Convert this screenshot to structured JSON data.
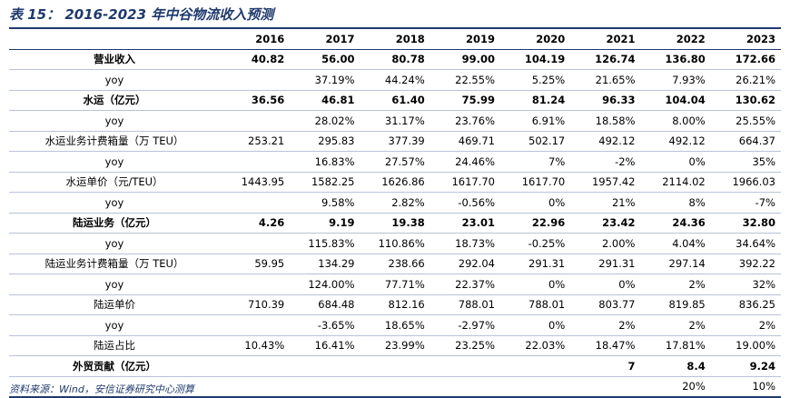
{
  "title": "表 15：  2016-2023 年中谷物流收入预测",
  "header": [
    "",
    "2016",
    "2017",
    "2018",
    "2019",
    "2020",
    "2021",
    "2022",
    "2023"
  ],
  "rows": [
    {
      "label": "营业收入",
      "bold": true,
      "values": [
        "40.82",
        "56.00",
        "80.78",
        "99.00",
        "104.19",
        "126.74",
        "136.80",
        "172.66"
      ]
    },
    {
      "label": "yoy",
      "bold": false,
      "values": [
        "",
        "37.19%",
        "44.24%",
        "22.55%",
        "5.25%",
        "21.65%",
        "7.93%",
        "26.21%"
      ]
    },
    {
      "label": "水运（亿元）",
      "bold": true,
      "values": [
        "36.56",
        "46.81",
        "61.40",
        "75.99",
        "81.24",
        "96.33",
        "104.04",
        "130.62"
      ]
    },
    {
      "label": "yoy",
      "bold": false,
      "values": [
        "",
        "28.02%",
        "31.17%",
        "23.76%",
        "6.91%",
        "18.58%",
        "8.00%",
        "25.55%"
      ]
    },
    {
      "label": "水运业务计费箱量（万 TEU）",
      "bold": false,
      "values": [
        "253.21",
        "295.83",
        "377.39",
        "469.71",
        "502.17",
        "492.12",
        "492.12",
        "664.37"
      ]
    },
    {
      "label": "yoy",
      "bold": false,
      "values": [
        "",
        "16.83%",
        "27.57%",
        "24.46%",
        "7%",
        "-2%",
        "0%",
        "35%"
      ]
    },
    {
      "label": "水运单价（元/TEU）",
      "bold": false,
      "values": [
        "1443.95",
        "1582.25",
        "1626.86",
        "1617.70",
        "1617.70",
        "1957.42",
        "2114.02",
        "1966.03"
      ]
    },
    {
      "label": "yoy",
      "bold": false,
      "values": [
        "",
        "9.58%",
        "2.82%",
        "-0.56%",
        "0%",
        "21%",
        "8%",
        "-7%"
      ]
    },
    {
      "label": "陆运业务（亿元）",
      "bold": true,
      "values": [
        "4.26",
        "9.19",
        "19.38",
        "23.01",
        "22.96",
        "23.42",
        "24.36",
        "32.80"
      ]
    },
    {
      "label": "yoy",
      "bold": false,
      "values": [
        "",
        "115.83%",
        "110.86%",
        "18.73%",
        "-0.25%",
        "2.00%",
        "4.04%",
        "34.64%"
      ]
    },
    {
      "label": "陆运业务计费箱量（万 TEU）",
      "bold": false,
      "values": [
        "59.95",
        "134.29",
        "238.66",
        "292.04",
        "291.31",
        "291.31",
        "297.14",
        "392.22"
      ]
    },
    {
      "label": "yoy",
      "bold": false,
      "values": [
        "",
        "124.00%",
        "77.71%",
        "22.37%",
        "0%",
        "0%",
        "2%",
        "32%"
      ]
    },
    {
      "label": "陆运单价",
      "bold": false,
      "values": [
        "710.39",
        "684.48",
        "812.16",
        "788.01",
        "788.01",
        "803.77",
        "819.85",
        "836.25"
      ]
    },
    {
      "label": "yoy",
      "bold": false,
      "values": [
        "",
        "-3.65%",
        "18.65%",
        "-2.97%",
        "0%",
        "2%",
        "2%",
        "2%"
      ]
    },
    {
      "label": "陆运占比",
      "bold": false,
      "values": [
        "10.43%",
        "16.41%",
        "23.99%",
        "23.25%",
        "22.03%",
        "18.47%",
        "17.81%",
        "19.00%"
      ]
    },
    {
      "label": "外贸贡献（亿元）",
      "bold": true,
      "values": [
        "",
        "",
        "",
        "",
        "",
        "7",
        "8.4",
        "9.24"
      ]
    },
    {
      "label": "",
      "bold": false,
      "values": [
        "",
        "",
        "",
        "",
        "",
        "",
        "20%",
        "10%"
      ]
    }
  ],
  "source": "资料来源：Wind，安信证券研究中心测算"
}
